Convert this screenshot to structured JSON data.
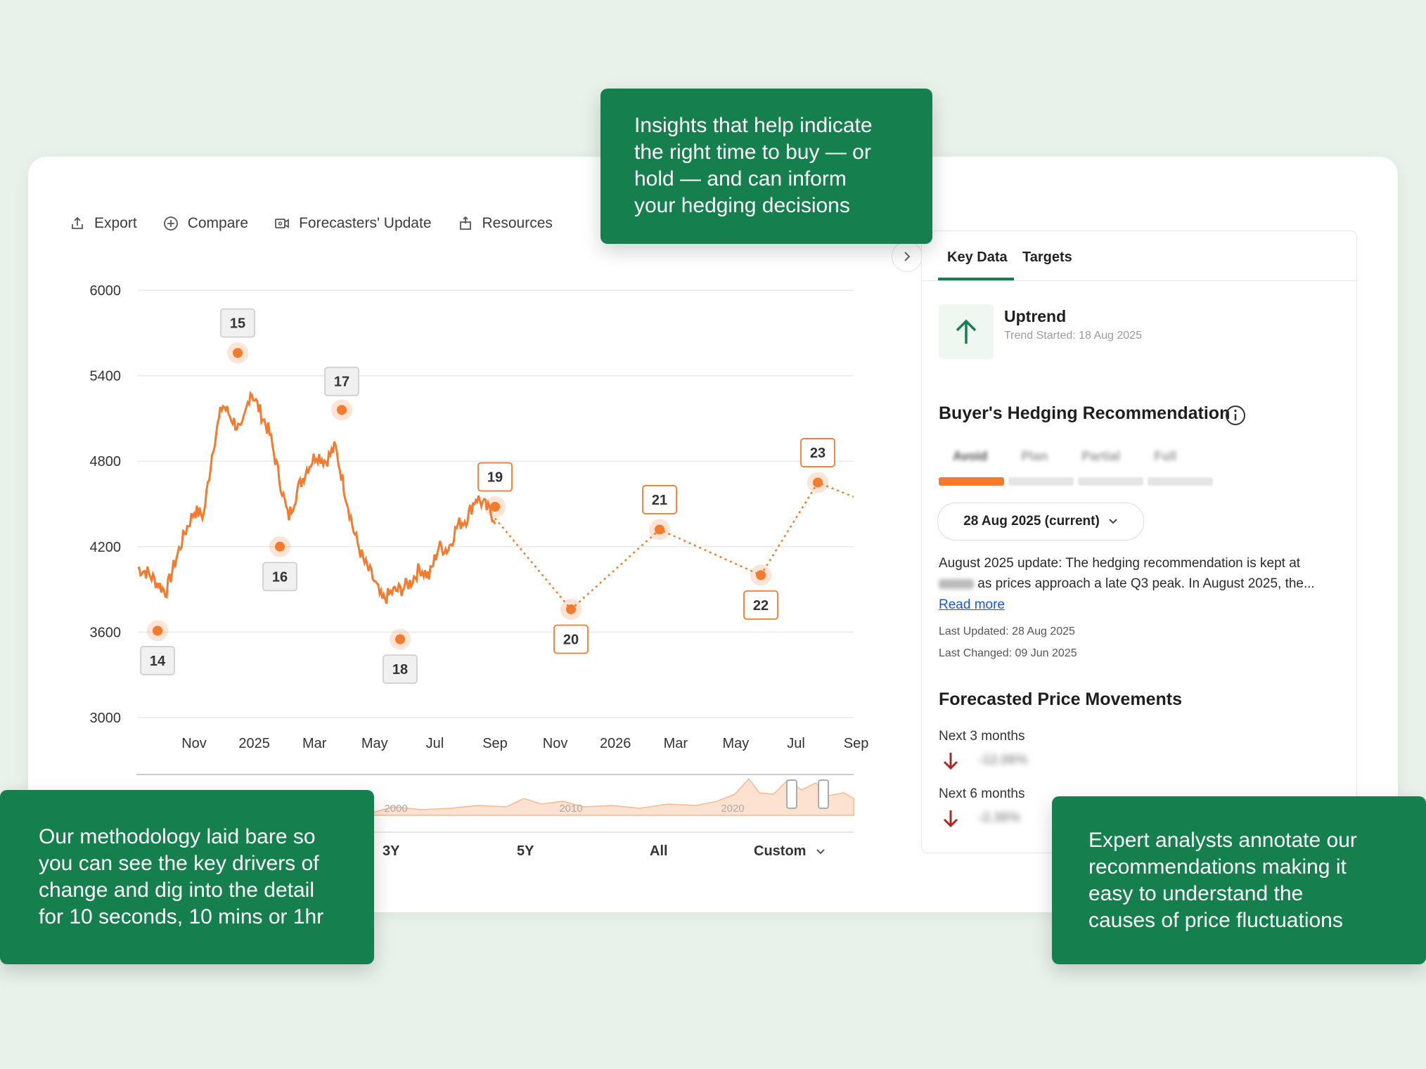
{
  "toolbar": {
    "export": "Export",
    "compare": "Compare",
    "forecasters_update": "Forecasters' Update",
    "resources": "Resources"
  },
  "chart_data": {
    "type": "line",
    "yticks": [
      "6000",
      "5400",
      "4800",
      "4200",
      "3600",
      "3000"
    ],
    "ylim": [
      3000,
      6000
    ],
    "xticks": [
      "Nov",
      "2025",
      "Mar",
      "May",
      "Jul",
      "Sep",
      "Nov",
      "2026",
      "Mar",
      "May",
      "Jul",
      "Sep"
    ],
    "series": [
      {
        "values_history": [
          4050,
          4020,
          3950,
          3880,
          4100,
          4300,
          4450,
          4420,
          4900,
          5200,
          5100,
          5000,
          5300,
          5150,
          5000,
          4700,
          4400,
          4600,
          4750,
          4850,
          4800,
          4900,
          4600,
          4300,
          4100,
          3980,
          3820,
          3880,
          3900,
          3950,
          4050,
          3990,
          4200,
          4180,
          4350,
          4400,
          4550,
          4480,
          4400
        ],
        "forecast": [
          4400,
          3760,
          4320,
          4000,
          4650,
          4550
        ]
      }
    ],
    "annotations": [
      "14",
      "15",
      "16",
      "17",
      "18",
      "19",
      "20",
      "21",
      "22",
      "23"
    ],
    "navigator_years": [
      "2000",
      "2010",
      "2020"
    ]
  },
  "range_buttons": [
    "3Y",
    "5Y",
    "All",
    "Custom"
  ],
  "panel": {
    "tab_key_data": "Key Data",
    "tab_targets": "Targets",
    "trend_title": "Uptrend",
    "trend_started": "Trend Started: 18 Aug 2025",
    "rec_title": "Buyer's Hedging Recommendation",
    "rec_levels": [
      "Avoid",
      "Plan",
      "Partial",
      "Full"
    ],
    "date_select": "28 Aug 2025 (current)",
    "update_line1": "August 2025 update: The hedging recommendation is kept at",
    "update_line2": "as prices approach a late Q3 peak. In August 2025, the...",
    "read_more": "Read more",
    "last_updated": "Last Updated: 28 Aug 2025",
    "last_changed": "Last Changed: 09 Jun 2025",
    "fpm_title": "Forecasted Price Movements",
    "next3": "Next 3 months",
    "next6": "Next 6 months",
    "next3_value": "-12.06%",
    "next6_value": "-2.36%"
  },
  "callouts": {
    "top": [
      "Insights that help indicate",
      "the right time to buy — or",
      "hold — and can inform",
      "your hedging decisions"
    ],
    "left": [
      "Our methodology laid bare so",
      "you can see the key drivers of",
      "change and dig into the detail",
      "for 10 seconds, 10 mins or 1hr"
    ],
    "right": [
      "Expert analysts annotate our",
      "recommendations making it",
      "easy to understand the",
      "causes of price fluctuations"
    ]
  },
  "colors": {
    "brand_green": "#15804d",
    "series_orange": "#f47a2e",
    "down_red": "#b3261e"
  }
}
